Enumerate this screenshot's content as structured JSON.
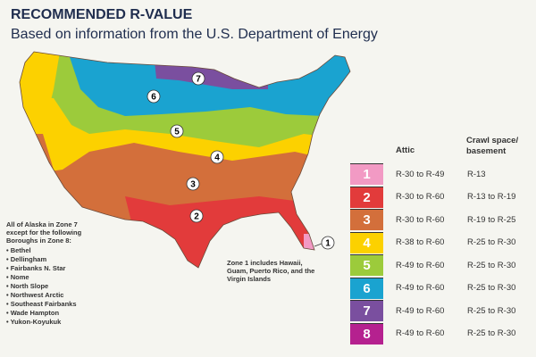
{
  "title": "RECOMMENDED R-VALUE",
  "subtitle": "Based on information from the U.S. Department of Energy",
  "table": {
    "headers": {
      "attic": "Attic",
      "crawl": "Crawl space/ basement"
    },
    "rows": [
      {
        "zone": "1",
        "color": "#f29ac4",
        "attic": "R-30 to R-49",
        "crawl": "R-13"
      },
      {
        "zone": "2",
        "color": "#e23b3b",
        "attic": "R-30 to R-60",
        "crawl": "R-13 to R-19"
      },
      {
        "zone": "3",
        "color": "#d36f3b",
        "attic": "R-30 to R-60",
        "crawl": "R-19 to R-25"
      },
      {
        "zone": "4",
        "color": "#fcd100",
        "attic": "R-38 to R-60",
        "crawl": "R-25 to R-30"
      },
      {
        "zone": "5",
        "color": "#9ccb3b",
        "attic": "R-49 to R-60",
        "crawl": "R-25 to R-30"
      },
      {
        "zone": "6",
        "color": "#1aa3d0",
        "attic": "R-49 to R-60",
        "crawl": "R-25 to R-30"
      },
      {
        "zone": "7",
        "color": "#7a4f9f",
        "attic": "R-49 to R-60",
        "crawl": "R-25 to R-30"
      },
      {
        "zone": "8",
        "color": "#b5218f",
        "attic": "R-49 to R-60",
        "crawl": "R-25 to R-30"
      }
    ]
  },
  "alaska_note": {
    "intro": "All of Alaska in Zone 7 except for the following Boroughs in Zone 8:",
    "boroughs": [
      "Bethel",
      "Dellingham",
      "Fairbanks N. Star",
      "Nome",
      "North Slope",
      "Northwest Arctic",
      "Southeast Fairbanks",
      "Wade Hampton",
      "Yukon-Koyukuk"
    ]
  },
  "zone1_note": "Zone 1 includes Hawaii, Guam, Puerto Rico, and the Virgin Islands",
  "map_labels": [
    "1",
    "2",
    "3",
    "4",
    "5",
    "6",
    "7"
  ]
}
